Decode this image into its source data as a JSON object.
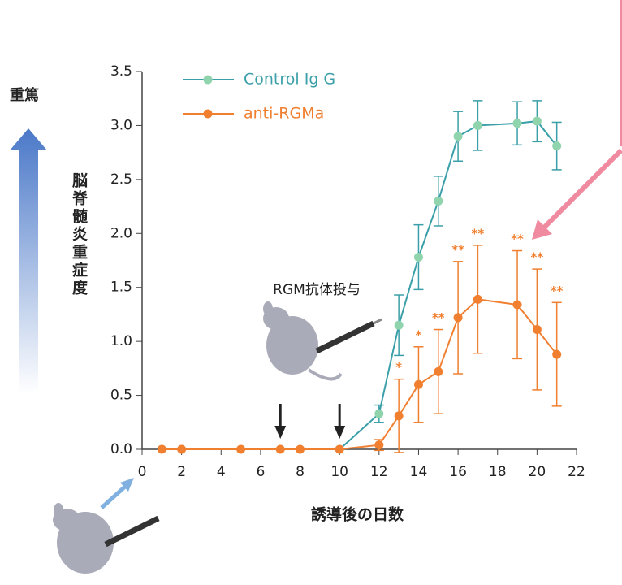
{
  "chart_data": {
    "type": "line",
    "severity_label": "重篤",
    "ylabel": "脳脊髄炎重症度",
    "xlabel": "誘導後の日数",
    "xlim": [
      0,
      22
    ],
    "ylim": [
      0,
      3.5
    ],
    "xticks": [
      0,
      2,
      4,
      6,
      8,
      10,
      12,
      14,
      16,
      18,
      20,
      22
    ],
    "yticks": [
      {
        "value": 0,
        "label": "0.0"
      },
      0.5,
      {
        "value": 1,
        "label": "1.0"
      },
      1.5,
      {
        "value": 2,
        "label": "2.0"
      },
      2.5,
      {
        "value": 3,
        "label": "3.0"
      },
      3.5
    ],
    "dosing": {
      "label": "RGM抗体投与",
      "days": [
        7,
        10
      ]
    },
    "series": [
      {
        "name": "Control Ig G",
        "color": "#3a9fa8",
        "marker_color": "#8fd4ac",
        "x": [
          10,
          12,
          13,
          14,
          15,
          16,
          17,
          19,
          20,
          21
        ],
        "values": [
          0,
          0.33,
          1.15,
          1.78,
          2.3,
          2.9,
          3.0,
          3.02,
          3.04,
          2.81
        ],
        "errors": [
          null,
          0.08,
          0.28,
          0.3,
          0.23,
          0.23,
          0.23,
          0.2,
          0.19,
          0.22
        ]
      },
      {
        "name": "anti-RGMa",
        "color": "#f07f30",
        "marker_color": "#f07f30",
        "x": [
          1,
          2,
          5,
          7,
          8,
          10,
          12,
          13,
          14,
          15,
          16,
          17,
          19,
          20,
          21
        ],
        "values": [
          0,
          0,
          0,
          0,
          0,
          0,
          0.04,
          0.31,
          0.6,
          0.72,
          1.22,
          1.39,
          1.34,
          1.11,
          0.88
        ],
        "errors": [
          null,
          null,
          null,
          null,
          null,
          null,
          0.05,
          0.34,
          0.35,
          0.39,
          0.52,
          0.5,
          0.5,
          0.56,
          0.48
        ],
        "significance": [
          null,
          null,
          null,
          null,
          null,
          null,
          null,
          "*",
          "*",
          "**",
          "**",
          "**",
          "**",
          "**",
          "**"
        ]
      }
    ]
  }
}
